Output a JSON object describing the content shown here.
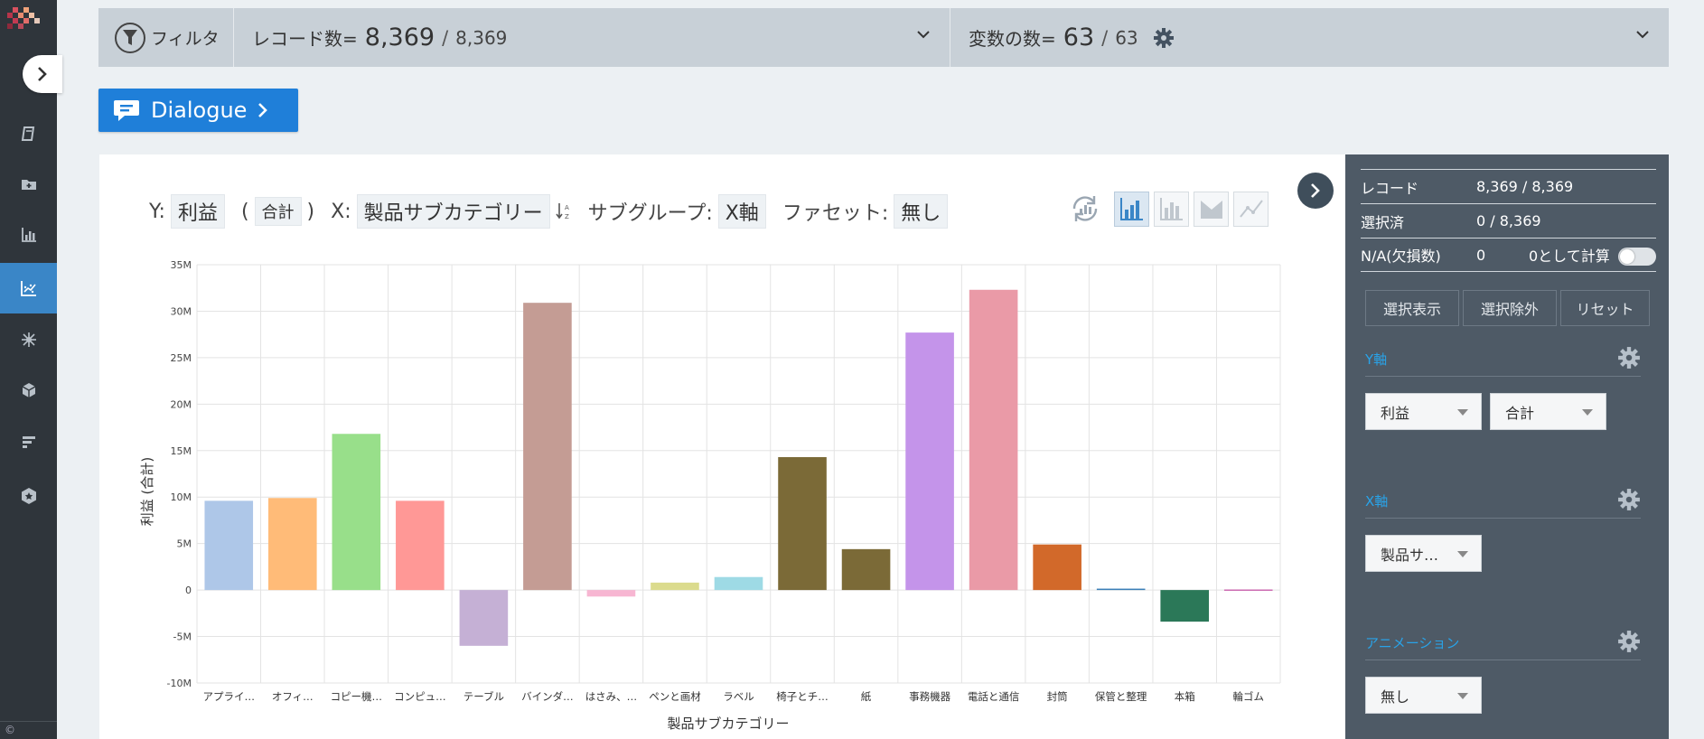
{
  "colors": {
    "rail_bg": "#2f353b",
    "rail_active": "#3a86c7",
    "accent_blue": "#1f7fd9",
    "side_panel_bg": "#4e5a66",
    "section_title": "#29a3e8"
  },
  "nav": {
    "items": [
      "book-icon",
      "folder-icon",
      "bar-chart-icon",
      "scatter-chart-icon",
      "network-icon",
      "cube-icon",
      "list-bars-icon",
      "badge-icon"
    ],
    "active_index": 3,
    "copyright": "©"
  },
  "topbar": {
    "filter_label": "フィルタ",
    "records_label": "レコード数=",
    "records_count": "8,369",
    "records_total": "8,369",
    "vars_label": "変数の数=",
    "vars_count": "63",
    "vars_total": "63",
    "slash": "/"
  },
  "dialogue": {
    "label": "Dialogue"
  },
  "controls": {
    "y_label": "Y:",
    "y_var": "利益",
    "y_agg": "合計",
    "paren_open": "(",
    "paren_close": ")",
    "x_label": "X:",
    "x_var": "製品サブカテゴリー",
    "subgroup_label": "サブグループ:",
    "subgroup_value": "X軸",
    "facet_label": "ファセット:",
    "facet_value": "無し"
  },
  "chart_data": {
    "type": "bar",
    "title": "",
    "xlabel": "製品サブカテゴリー",
    "ylabel": "利益 (合計)",
    "ylim": [
      -10000000,
      35000000
    ],
    "yticks": [
      35000000,
      30000000,
      25000000,
      20000000,
      15000000,
      10000000,
      5000000,
      0,
      -5000000,
      -10000000
    ],
    "ytick_labels": [
      "35M",
      "30M",
      "25M",
      "20M",
      "15M",
      "10M",
      "5M",
      "0",
      "-5M",
      "-10M"
    ],
    "grid": true,
    "categories": [
      "アプライ…",
      "オフィ…",
      "コピー機…",
      "コンピュ…",
      "テーブル",
      "バインダ…",
      "はさみ、…",
      "ペンと画材",
      "ラベル",
      "椅子とチ…",
      "紙",
      "事務機器",
      "電話と通信",
      "封筒",
      "保管と整理",
      "本箱",
      "輪ゴム"
    ],
    "values": [
      9600000,
      9900000,
      16800000,
      9600000,
      -6000000,
      30900000,
      -700000,
      800000,
      1400000,
      14300000,
      4400000,
      27700000,
      32300000,
      4900000,
      150000,
      -3400000,
      50000
    ],
    "colors": [
      "#aec7e8",
      "#ffbb78",
      "#98df8a",
      "#ff9896",
      "#c5b0d5",
      "#c49c94",
      "#f7b6d2",
      "#dbdb8d",
      "#9edae5",
      "#7b6a37",
      "#7b6a37",
      "#c494ea",
      "#ea9aa7",
      "#d2692a",
      "#3a7fb8",
      "#2b7858",
      "#c2469f"
    ]
  },
  "side": {
    "rows": [
      {
        "key": "レコード",
        "value": "8,369 / 8,369"
      },
      {
        "key": "選択済",
        "value": "0 / 8,369"
      },
      {
        "key": "N/A(欠損数)",
        "value": "0",
        "extra": "0として計算"
      }
    ],
    "buttons": [
      "選択表示",
      "選択除外",
      "リセット"
    ],
    "y_section": {
      "title": "Y軸",
      "var": "利益",
      "agg": "合計"
    },
    "x_section": {
      "title": "X軸",
      "var": "製品サ…"
    },
    "anim_section": {
      "title": "アニメーション",
      "value": "無し"
    }
  }
}
